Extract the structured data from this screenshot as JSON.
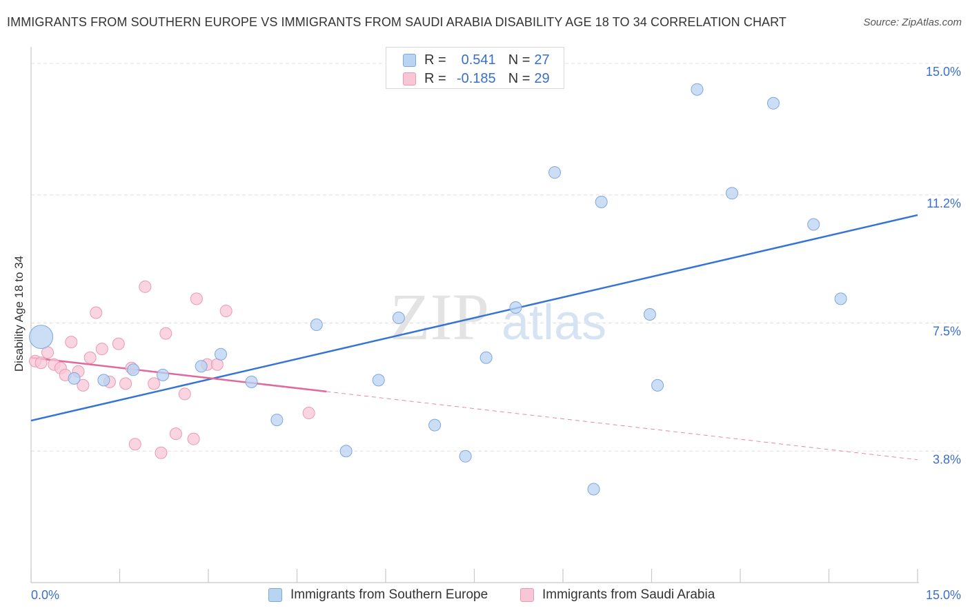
{
  "title": "IMMIGRANTS FROM SOUTHERN EUROPE VS IMMIGRANTS FROM SAUDI ARABIA DISABILITY AGE 18 TO 34 CORRELATION CHART",
  "source": "Source: ZipAtlas.com",
  "watermark": {
    "zip": "ZIP",
    "atlas": "atlas"
  },
  "legend": {
    "r_label": "R =",
    "n_label": "N =",
    "rows": [
      {
        "r": "0.541",
        "n": "27"
      },
      {
        "r": "-0.185",
        "n": "29"
      }
    ]
  },
  "bottom_legend": {
    "series1": "Immigrants from Southern Europe",
    "series2": "Immigrants from Saudi Arabia"
  },
  "colors": {
    "blue_fill": "#b9d3f3",
    "blue_stroke": "#7fa6de",
    "blue_line": "#3474d4",
    "pink_fill": "#f8c6d5",
    "pink_stroke": "#e89ab4",
    "pink_line": "#e2679a",
    "tick_label": "#3a6fc9",
    "grid": "#e0e0e0"
  },
  "chart_data": {
    "type": "scatter",
    "title": "IMMIGRANTS FROM SOUTHERN EUROPE VS IMMIGRANTS FROM SAUDI ARABIA DISABILITY AGE 18 TO 34 CORRELATION CHART",
    "xlabel": "",
    "ylabel": "Disability Age 18 to 34",
    "xlim": [
      0,
      15
    ],
    "ylim": [
      0,
      15.3
    ],
    "x_tick_labels": [
      "0.0%",
      "15.0%"
    ],
    "y_ticks": [
      3.8,
      7.5,
      11.2,
      15.0
    ],
    "y_tick_labels": [
      "3.8%",
      "7.5%",
      "11.2%",
      "15.0%"
    ],
    "grid": true,
    "series": [
      {
        "name": "Immigrants from Southern Europe",
        "r": 0.541,
        "n": 27,
        "points": [
          {
            "x": 0.17,
            "y": 7.1,
            "big": true
          },
          {
            "x": 0.73,
            "y": 5.9
          },
          {
            "x": 1.23,
            "y": 5.85
          },
          {
            "x": 1.73,
            "y": 6.15
          },
          {
            "x": 2.23,
            "y": 6.0
          },
          {
            "x": 2.88,
            "y": 6.25
          },
          {
            "x": 3.21,
            "y": 6.6
          },
          {
            "x": 3.73,
            "y": 5.8
          },
          {
            "x": 4.16,
            "y": 4.7
          },
          {
            "x": 4.83,
            "y": 7.45
          },
          {
            "x": 5.33,
            "y": 3.8
          },
          {
            "x": 5.88,
            "y": 5.85
          },
          {
            "x": 6.22,
            "y": 7.65
          },
          {
            "x": 6.83,
            "y": 4.55
          },
          {
            "x": 7.35,
            "y": 3.65
          },
          {
            "x": 7.7,
            "y": 6.5
          },
          {
            "x": 8.2,
            "y": 7.95
          },
          {
            "x": 8.86,
            "y": 11.85
          },
          {
            "x": 9.52,
            "y": 2.7
          },
          {
            "x": 9.65,
            "y": 11.0
          },
          {
            "x": 10.47,
            "y": 7.75
          },
          {
            "x": 10.6,
            "y": 5.7
          },
          {
            "x": 11.27,
            "y": 14.25
          },
          {
            "x": 11.86,
            "y": 11.25
          },
          {
            "x": 12.56,
            "y": 13.85
          },
          {
            "x": 13.24,
            "y": 10.35
          },
          {
            "x": 13.7,
            "y": 8.2
          }
        ],
        "trend": {
          "x": [
            0,
            15
          ],
          "y": [
            4.68,
            10.62
          ]
        }
      },
      {
        "name": "Immigrants from Saudi Arabia",
        "r": -0.185,
        "n": 29,
        "points": [
          {
            "x": 0.07,
            "y": 6.4
          },
          {
            "x": 0.17,
            "y": 6.35
          },
          {
            "x": 0.28,
            "y": 6.65
          },
          {
            "x": 0.39,
            "y": 6.3
          },
          {
            "x": 0.5,
            "y": 6.2
          },
          {
            "x": 0.58,
            "y": 6.0
          },
          {
            "x": 0.68,
            "y": 6.95
          },
          {
            "x": 0.8,
            "y": 6.1
          },
          {
            "x": 0.88,
            "y": 5.7
          },
          {
            "x": 1.0,
            "y": 6.5
          },
          {
            "x": 1.1,
            "y": 7.8
          },
          {
            "x": 1.2,
            "y": 6.75
          },
          {
            "x": 1.33,
            "y": 5.8
          },
          {
            "x": 1.48,
            "y": 6.9
          },
          {
            "x": 1.6,
            "y": 5.75
          },
          {
            "x": 1.7,
            "y": 6.2
          },
          {
            "x": 1.76,
            "y": 4.0
          },
          {
            "x": 1.93,
            "y": 8.55
          },
          {
            "x": 2.08,
            "y": 5.75
          },
          {
            "x": 2.2,
            "y": 3.75
          },
          {
            "x": 2.28,
            "y": 7.2
          },
          {
            "x": 2.45,
            "y": 4.3
          },
          {
            "x": 2.6,
            "y": 5.45
          },
          {
            "x": 2.75,
            "y": 4.15
          },
          {
            "x": 2.8,
            "y": 8.2
          },
          {
            "x": 2.98,
            "y": 6.3
          },
          {
            "x": 3.15,
            "y": 6.3
          },
          {
            "x": 3.3,
            "y": 7.85
          },
          {
            "x": 4.7,
            "y": 4.9
          }
        ],
        "trend": {
          "x": [
            0,
            5.0
          ],
          "y": [
            6.5,
            5.52
          ]
        },
        "trend_dashed": {
          "x": [
            5.0,
            15
          ],
          "y": [
            5.52,
            3.55
          ]
        }
      }
    ]
  }
}
